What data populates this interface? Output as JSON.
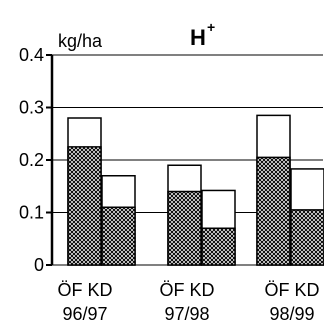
{
  "chart_data": {
    "type": "bar",
    "title": "H",
    "title_superscript": "+",
    "ylabel": "kg/ha",
    "xlabel": "",
    "ylim": [
      0,
      0.4
    ],
    "yticks": [
      0,
      0.1,
      0.2,
      0.3,
      0.4
    ],
    "ytick_labels": [
      "0",
      "0.1",
      "0.2",
      "0.3",
      "0.4"
    ],
    "grid": "horizontal",
    "categories": [
      {
        "label": "ÖF KD",
        "sublabel": "96/97"
      },
      {
        "label": "ÖF KD",
        "sublabel": "97/98"
      },
      {
        "label": "ÖF KD",
        "sublabel": "98/99"
      }
    ],
    "series": [
      {
        "group": "ÖF",
        "pattern": "crosshatch",
        "values": [
          0.225,
          0.14,
          0.205
        ]
      },
      {
        "group": "ÖF",
        "pattern": "white",
        "values": [
          0.055,
          0.05,
          0.08
        ]
      },
      {
        "group": "KD",
        "pattern": "crosshatch",
        "values": [
          0.11,
          0.07,
          0.105
        ]
      },
      {
        "group": "KD",
        "pattern": "white",
        "values": [
          0.06,
          0.072,
          0.078
        ]
      }
    ],
    "totals": {
      "OF": [
        0.28,
        0.19,
        0.285
      ],
      "KD": [
        0.17,
        0.142,
        0.183
      ]
    },
    "colors": {
      "hatch": "#000000",
      "background": "#ffffff",
      "axis": "#000000"
    }
  }
}
